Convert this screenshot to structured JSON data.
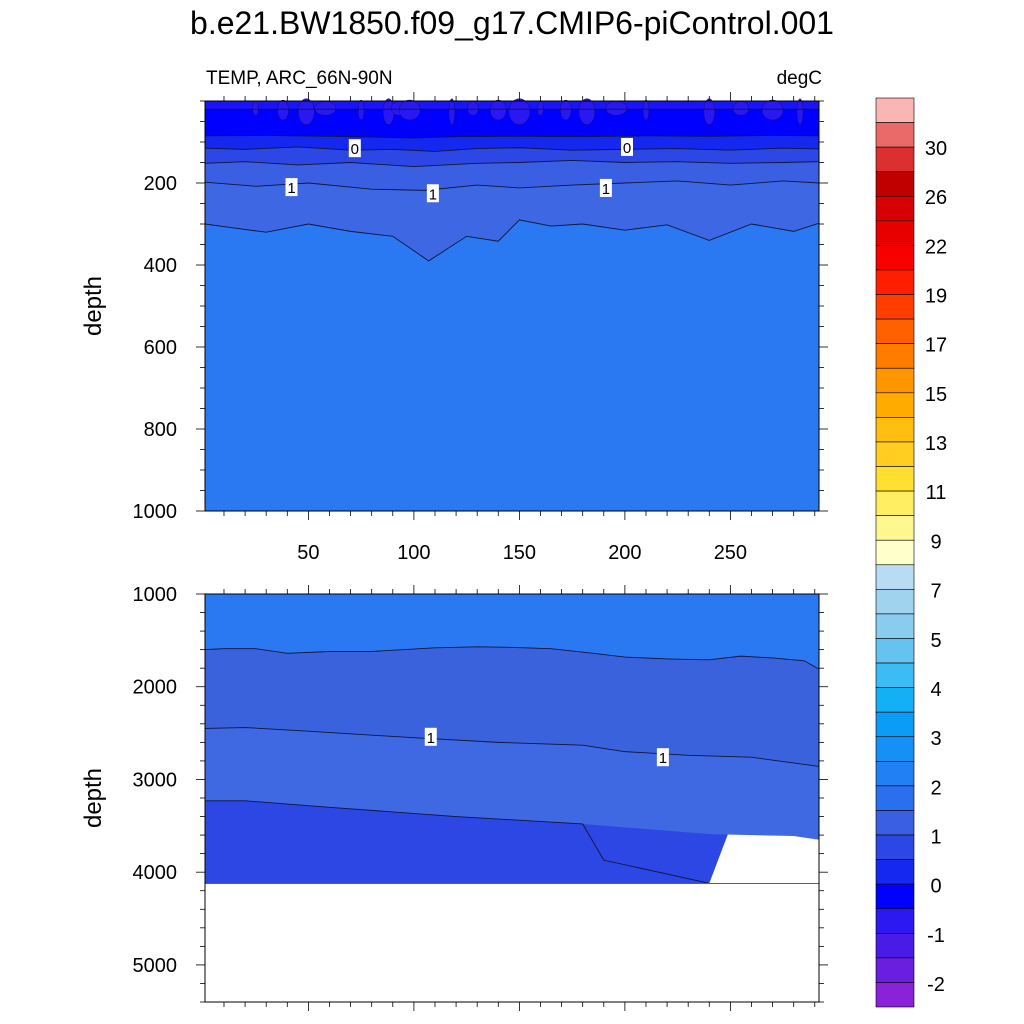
{
  "title": "b.e21.BW1850.f09_g17.CMIP6-piControl.001",
  "chart_data": {
    "type": "contour",
    "variable": "TEMP",
    "left_label": "TEMP, ARC_66N-90N",
    "right_label": "degC",
    "xlabel": "",
    "ylabel": "depth",
    "x_range": [
      1,
      292
    ],
    "x_ticks": [
      50,
      100,
      150,
      200,
      250
    ],
    "panels": [
      {
        "name": "upper",
        "ylim": [
          0,
          1000
        ],
        "y_ticks": [
          200,
          400,
          600,
          800,
          1000
        ],
        "show_x_tick_labels": true,
        "fills": [
          {
            "level_range": "< -1",
            "color": "#1a14fa",
            "contour": [
              [
                1,
                20
              ],
              [
                292,
                20
              ]
            ]
          },
          {
            "level_range": "-1 to -0.5",
            "color": "#0000ff",
            "contour": [
              [
                1,
                85
              ],
              [
                30,
                84
              ],
              [
                60,
                86
              ],
              [
                80,
                88
              ],
              [
                100,
                90
              ],
              [
                120,
                87
              ],
              [
                150,
                86
              ],
              [
                180,
                87
              ],
              [
                210,
                85
              ],
              [
                240,
                86
              ],
              [
                270,
                84
              ],
              [
                292,
                85
              ]
            ]
          },
          {
            "level_range": "-0.5 to 0",
            "color": "#1428f0",
            "contour": [
              [
                1,
                115
              ],
              [
                20,
                118
              ],
              [
                45,
                112
              ],
              [
                70,
                120
              ],
              [
                90,
                118
              ],
              [
                110,
                123
              ],
              [
                130,
                116
              ],
              [
                150,
                114
              ],
              [
                175,
                120
              ],
              [
                200,
                118
              ],
              [
                225,
                116
              ],
              [
                250,
                120
              ],
              [
                275,
                115
              ],
              [
                292,
                117
              ]
            ]
          },
          {
            "level_range": "0 to 0.5",
            "color": "#2c47e4",
            "contour": [
              [
                1,
                152
              ],
              [
                20,
                148
              ],
              [
                45,
                156
              ],
              [
                70,
                150
              ],
              [
                100,
                160
              ],
              [
                130,
                152
              ],
              [
                150,
                150
              ],
              [
                175,
                145
              ],
              [
                200,
                150
              ],
              [
                225,
                148
              ],
              [
                250,
                152
              ],
              [
                275,
                150
              ],
              [
                292,
                148
              ]
            ]
          },
          {
            "level_range": "0.5 to 1",
            "color": "#3a5fe2",
            "contour": [
              [
                1,
                198
              ],
              [
                25,
                208
              ],
              [
                50,
                200
              ],
              [
                80,
                215
              ],
              [
                105,
                218
              ],
              [
                130,
                205
              ],
              [
                150,
                212
              ],
              [
                175,
                205
              ],
              [
                200,
                200
              ],
              [
                225,
                195
              ],
              [
                250,
                205
              ],
              [
                275,
                195
              ],
              [
                292,
                200
              ]
            ]
          },
          {
            "level_range": "1 to 1.5",
            "color": "#3e68e3",
            "contour": [
              [
                1,
                300
              ],
              [
                15,
                310
              ],
              [
                30,
                320
              ],
              [
                50,
                300
              ],
              [
                70,
                318
              ],
              [
                90,
                330
              ],
              [
                107,
                390
              ],
              [
                125,
                330
              ],
              [
                140,
                342
              ],
              [
                150,
                290
              ],
              [
                165,
                305
              ],
              [
                180,
                300
              ],
              [
                200,
                315
              ],
              [
                220,
                302
              ],
              [
                240,
                340
              ],
              [
                260,
                300
              ],
              [
                280,
                318
              ],
              [
                292,
                298
              ]
            ]
          },
          {
            "level_range": "1.5 to 2",
            "color": "#2a78f2",
            "contour": []
          }
        ],
        "contour_labels": [
          {
            "text": "0",
            "x": 72,
            "y": 115
          },
          {
            "text": "0",
            "x": 201,
            "y": 112
          },
          {
            "text": "1",
            "x": 42,
            "y": 210
          },
          {
            "text": "1",
            "x": 109,
            "y": 225
          },
          {
            "text": "1",
            "x": 191,
            "y": 212
          }
        ]
      },
      {
        "name": "lower",
        "ylim": [
          1000,
          5400
        ],
        "y_ticks": [
          1000,
          2000,
          3000,
          4000,
          5000
        ],
        "show_x_tick_labels": false,
        "ocean_bottom": 4120,
        "fills": [
          {
            "level_range": "1.5 to 2",
            "color": "#2a78f2",
            "contour": [
              [
                1,
                1600
              ],
              [
                10,
                1590
              ],
              [
                25,
                1590
              ],
              [
                40,
                1640
              ],
              [
                60,
                1620
              ],
              [
                80,
                1620
              ],
              [
                110,
                1580
              ],
              [
                130,
                1570
              ],
              [
                145,
                1575
              ],
              [
                165,
                1590
              ],
              [
                185,
                1640
              ],
              [
                200,
                1680
              ],
              [
                220,
                1700
              ],
              [
                240,
                1710
              ],
              [
                255,
                1670
              ],
              [
                270,
                1690
              ],
              [
                285,
                1720
              ],
              [
                292,
                1810
              ]
            ]
          },
          {
            "level_range": "1 to 1.5",
            "color": "#3a62dc",
            "contour": [
              [
                1,
                2450
              ],
              [
                20,
                2440
              ],
              [
                50,
                2480
              ],
              [
                100,
                2550
              ],
              [
                140,
                2600
              ],
              [
                180,
                2630
              ],
              [
                200,
                2700
              ],
              [
                230,
                2740
              ],
              [
                260,
                2760
              ],
              [
                292,
                2860
              ]
            ]
          },
          {
            "level_range": "0.5 to 1",
            "color": "#3e69e2",
            "contour": [
              [
                1,
                3230
              ],
              [
                20,
                3230
              ],
              [
                60,
                3300
              ],
              [
                120,
                3400
              ],
              [
                180,
                3480
              ],
              [
                240,
                3590
              ],
              [
                280,
                3610
              ],
              [
                292,
                3650
              ]
            ]
          },
          {
            "level_range": "0 to 0.5",
            "color": "#2c47e4",
            "contour": [
              [
                190,
                3870
              ],
              [
                240,
                4120
              ]
            ]
          }
        ],
        "contour_labels": [
          {
            "text": "1",
            "x": 108,
            "y": 2540
          },
          {
            "text": "1",
            "x": 218,
            "y": 2760
          }
        ]
      }
    ],
    "colorbar": {
      "labels": [
        "30",
        "26",
        "22",
        "19",
        "17",
        "15",
        "13",
        "11",
        "9",
        "7",
        "5",
        "4",
        "3",
        "2",
        "1",
        "0",
        "-1",
        "-2"
      ],
      "colors": [
        "#fab5b5",
        "#ea6a6a",
        "#dc3030",
        "#c00000",
        "#d80000",
        "#e80000",
        "#f80000",
        "#ff1e00",
        "#ff3e00",
        "#ff6000",
        "#ff7c00",
        "#ff9600",
        "#ffab00",
        "#ffbe10",
        "#ffce20",
        "#ffe030",
        "#ffee60",
        "#fff890",
        "#ffffcc",
        "#b8ddf2",
        "#a0d4ee",
        "#8acced",
        "#66c3f0",
        "#3cbcf4",
        "#14b0f6",
        "#0a9cf6",
        "#1690f6",
        "#2080f4",
        "#2a70ee",
        "#3a5fe2",
        "#2c47e4",
        "#1428f0",
        "#0000ff",
        "#2c18f0",
        "#4a1ae6",
        "#6a1ee0",
        "#8a22da"
      ]
    }
  }
}
